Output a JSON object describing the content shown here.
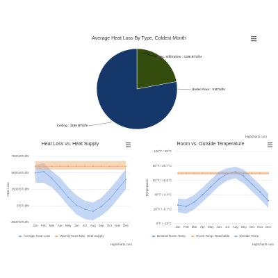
{
  "chart_data": [
    {
      "type": "pie",
      "title": "Average Heat Loss By Type, Coldest Month",
      "values": [
        1186,
        0,
        4186
      ],
      "value_labels": [
        "Misc. Infiltration : 1186 BTU/hr",
        "Under Floor : 0 BTU/hr",
        "Ceiling : 4186 BTU/hr"
      ],
      "colors": [
        "#344c0e",
        "#7798bf",
        "#15376a"
      ],
      "credits": "Highcharts.com"
    },
    {
      "type": "line",
      "title": "Heat Loss vs. Heat Supply",
      "ylabel": "Heat Loss",
      "categories": [
        "Jan",
        "Feb",
        "Mar",
        "Apr",
        "May",
        "Jun",
        "Jul",
        "Aug",
        "Sep",
        "Oct",
        "Nov",
        "Dec"
      ],
      "ylim": [
        -2500,
        7500
      ],
      "yticks": [
        {
          "value": -2500,
          "label": "-2500 BTU/hr"
        },
        {
          "value": 0,
          "label": "0 BTU/hr"
        },
        {
          "value": 2500,
          "label": "2500 BTU/hr"
        },
        {
          "value": 5000,
          "label": "5000 BTU/hr"
        },
        {
          "value": 7500,
          "label": "7500 BTU/hr"
        }
      ],
      "grid": true,
      "series": [
        {
          "name": "Average Heat Loss",
          "color": "#7aa6e8",
          "values": [
            5000,
            5200,
            4200,
            2800,
            1300,
            100,
            -500,
            -800,
            -100,
            1000,
            2500,
            4000
          ],
          "low": [
            3500,
            3500,
            2800,
            1500,
            0,
            -1300,
            -2000,
            -2200,
            -1500,
            -500,
            1000,
            2500
          ],
          "high": [
            6200,
            6500,
            5300,
            4300,
            2800,
            1600,
            800,
            500,
            1200,
            2500,
            4000,
            5600
          ]
        },
        {
          "name": "WarmlyYours Max. Heat Supply",
          "color": "#f0a868",
          "values": [
            6000,
            6000,
            6000,
            6000,
            6000,
            6000,
            6000,
            6000,
            6000,
            6000,
            6000,
            6000
          ],
          "low": [
            5500,
            5500,
            5500,
            5500,
            5500,
            5500,
            5500,
            5500,
            5500,
            5500,
            5500,
            5500
          ],
          "high": [
            6800,
            6800,
            6800,
            6800,
            6800,
            6800,
            6800,
            6800,
            6800,
            6800,
            6800,
            6800
          ]
        }
      ],
      "credits": "Highcharts.com"
    },
    {
      "type": "line",
      "title": "Room vs. Outside Temperature",
      "ylabel": "Temperature",
      "categories": [
        "Jan",
        "Feb",
        "Mar",
        "Apr",
        "May",
        "Jun",
        "Jul",
        "Aug",
        "Sep",
        "Oct",
        "Nov",
        "Dec"
      ],
      "ylim": [
        0,
        100
      ],
      "yticks": [
        {
          "value": 0,
          "label": "0°F / -18°C"
        },
        {
          "value": 20,
          "label": "20°F / -6.7°C"
        },
        {
          "value": 40,
          "label": "40°F / 4.4°C"
        },
        {
          "value": 60,
          "label": "60°F / 15.5°C"
        },
        {
          "value": 80,
          "label": "80°F / 26.7°C"
        },
        {
          "value": 100,
          "label": "100°F / 38°C"
        }
      ],
      "grid": true,
      "series": [
        {
          "name": "Desired Room Temp.",
          "color": "#6f8fdb",
          "values": [
            26,
            24,
            30,
            40,
            51,
            62,
            69,
            72,
            66,
            55,
            44,
            32
          ]
        },
        {
          "name": "Room Temp. Reachable",
          "color": "#f0a868",
          "values": [
            70,
            70,
            70,
            70,
            70,
            70,
            70,
            70,
            70,
            70,
            70,
            70
          ],
          "low": [
            68,
            68,
            68,
            68,
            68,
            68,
            68,
            68,
            68,
            68,
            68,
            68
          ],
          "high": [
            72,
            72,
            72,
            72,
            72,
            72,
            72,
            72,
            72,
            72,
            72,
            72
          ]
        },
        {
          "name": "Outside Temp.",
          "color": "#7aa6e8",
          "low": [
            16,
            14,
            20,
            30,
            41,
            52,
            60,
            63,
            56,
            45,
            34,
            22
          ],
          "high": [
            35,
            34,
            40,
            50,
            61,
            72,
            77,
            79,
            75,
            65,
            54,
            42
          ]
        }
      ],
      "credits": "Highcharts.com"
    }
  ]
}
